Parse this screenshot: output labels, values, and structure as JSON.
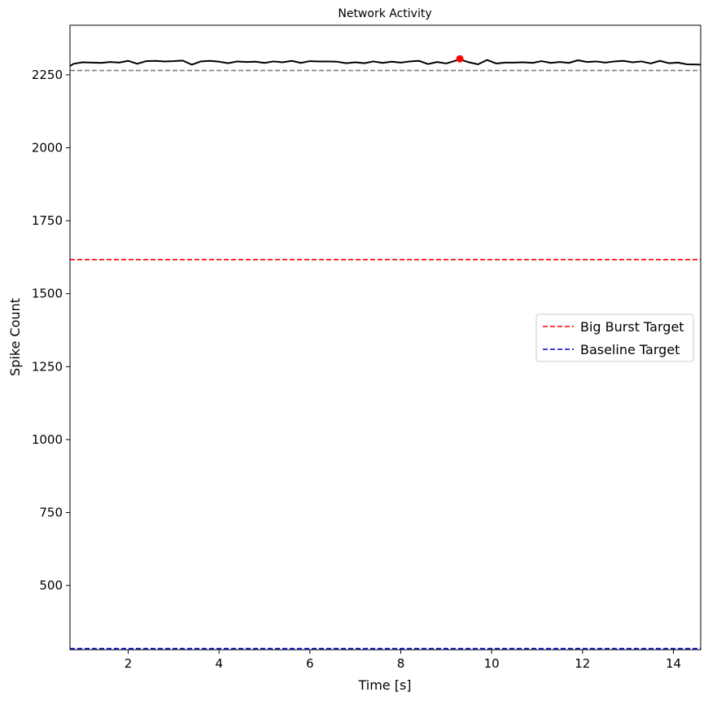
{
  "chart_data": {
    "type": "line",
    "title": "Network Activity",
    "xlabel": "Time [s]",
    "ylabel": "Spike Count",
    "xlim": [
      0.72,
      14.6
    ],
    "ylim": [
      280,
      2420
    ],
    "xticks": [
      2,
      4,
      6,
      8,
      10,
      12,
      14
    ],
    "yticks": [
      500,
      750,
      1000,
      1250,
      1500,
      1750,
      2000,
      2250
    ],
    "grid": false,
    "legend_position": "center-right",
    "series": [
      {
        "kind": "line",
        "color": "#000000",
        "x": [
          0.72,
          0.8,
          1.0,
          1.2,
          1.4,
          1.6,
          1.8,
          2.0,
          2.2,
          2.4,
          2.6,
          2.8,
          3.0,
          3.2,
          3.4,
          3.6,
          3.8,
          4.0,
          4.2,
          4.4,
          4.6,
          4.8,
          5.0,
          5.2,
          5.4,
          5.6,
          5.8,
          6.0,
          6.2,
          6.4,
          6.6,
          6.8,
          7.0,
          7.2,
          7.4,
          7.6,
          7.8,
          8.0,
          8.2,
          8.4,
          8.6,
          8.8,
          9.0,
          9.3,
          9.5,
          9.7,
          9.9,
          10.1,
          10.3,
          10.5,
          10.7,
          10.9,
          11.1,
          11.3,
          11.5,
          11.7,
          11.9,
          12.1,
          12.3,
          12.5,
          12.7,
          12.9,
          13.1,
          13.3,
          13.5,
          13.7,
          13.9,
          14.1,
          14.3,
          14.6
        ],
        "y": [
          2280,
          2288,
          2293,
          2292,
          2291,
          2294,
          2292,
          2298,
          2288,
          2297,
          2298,
          2296,
          2297,
          2299,
          2285,
          2296,
          2298,
          2295,
          2290,
          2296,
          2294,
          2295,
          2291,
          2296,
          2293,
          2298,
          2291,
          2297,
          2296,
          2296,
          2295,
          2290,
          2293,
          2290,
          2296,
          2291,
          2295,
          2292,
          2296,
          2298,
          2287,
          2294,
          2289,
          2303,
          2293,
          2286,
          2301,
          2289,
          2292,
          2292,
          2293,
          2291,
          2297,
          2291,
          2294,
          2291,
          2300,
          2294,
          2296,
          2292,
          2296,
          2298,
          2293,
          2296,
          2289,
          2298,
          2290,
          2292,
          2286,
          2285
        ]
      },
      {
        "kind": "hline",
        "name": "Big Burst Target",
        "value": 1617,
        "color": "#ff0000",
        "style": "dashed"
      },
      {
        "kind": "hline",
        "name": "Baseline Target",
        "value": 284,
        "color": "#0000cc",
        "style": "dashed"
      },
      {
        "kind": "hline",
        "value": 2265,
        "color": "#808080",
        "style": "dashed"
      },
      {
        "kind": "point",
        "x": 9.3,
        "y": 2305,
        "color": "#ff0000"
      }
    ]
  }
}
